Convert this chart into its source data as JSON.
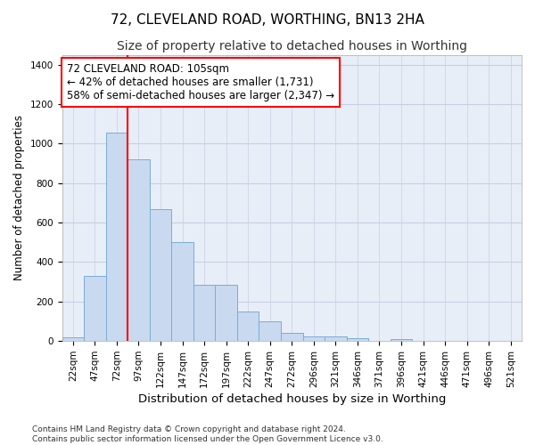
{
  "title": "72, CLEVELAND ROAD, WORTHING, BN13 2HA",
  "subtitle": "Size of property relative to detached houses in Worthing",
  "xlabel": "Distribution of detached houses by size in Worthing",
  "ylabel": "Number of detached properties",
  "bar_color": "#c8d9f0",
  "bar_edge_color": "#7aadd4",
  "bins": [
    "22sqm",
    "47sqm",
    "72sqm",
    "97sqm",
    "122sqm",
    "147sqm",
    "172sqm",
    "197sqm",
    "222sqm",
    "247sqm",
    "272sqm",
    "296sqm",
    "321sqm",
    "346sqm",
    "371sqm",
    "396sqm",
    "421sqm",
    "446sqm",
    "471sqm",
    "496sqm",
    "521sqm"
  ],
  "values": [
    20,
    330,
    1057,
    920,
    670,
    500,
    285,
    285,
    150,
    100,
    40,
    22,
    22,
    15,
    0,
    10,
    0,
    0,
    0,
    0,
    0
  ],
  "vline_pos": 3.5,
  "vline_color": "red",
  "annotation_text": "72 CLEVELAND ROAD: 105sqm\n← 42% of detached houses are smaller (1,731)\n58% of semi-detached houses are larger (2,347) →",
  "annotation_box_color": "white",
  "annotation_box_edge_color": "red",
  "ylim": [
    0,
    1450
  ],
  "yticks": [
    0,
    200,
    400,
    600,
    800,
    1000,
    1200,
    1400
  ],
  "grid_color": "#c8cfe0",
  "bg_color": "#e8eef8",
  "footnote": "Contains HM Land Registry data © Crown copyright and database right 2024.\nContains public sector information licensed under the Open Government Licence v3.0.",
  "title_fontsize": 11,
  "subtitle_fontsize": 10,
  "xlabel_fontsize": 9.5,
  "ylabel_fontsize": 8.5,
  "tick_fontsize": 7.5,
  "annot_fontsize": 8.5
}
